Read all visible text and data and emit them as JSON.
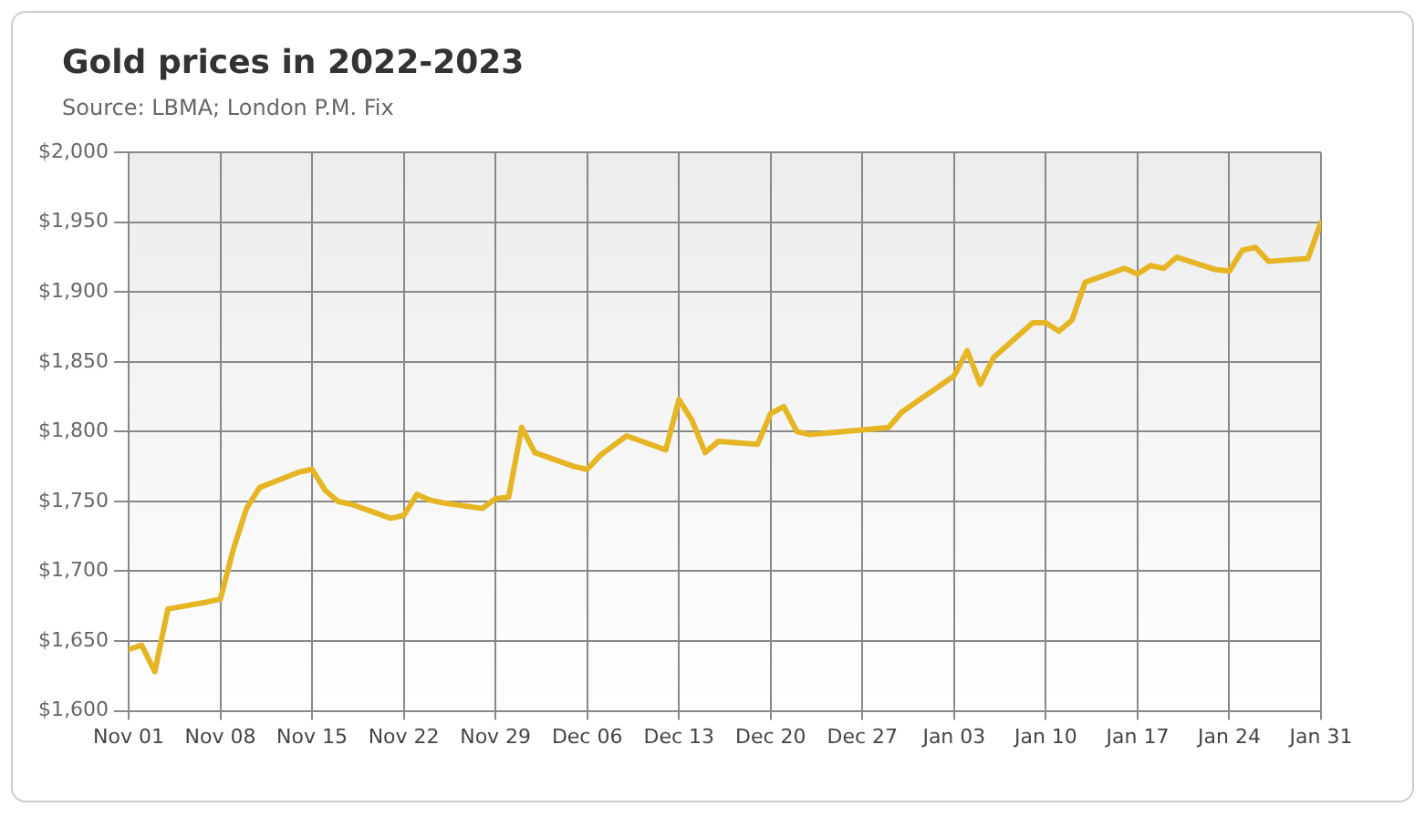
{
  "chart_data": {
    "type": "line",
    "title": "Gold prices in 2022-2023",
    "annotations": [
      "Source: LBMA; London P.M. Fix"
    ],
    "x": [
      "2022-11-01",
      "2022-11-02",
      "2022-11-03",
      "2022-11-04",
      "2022-11-07",
      "2022-11-08",
      "2022-11-09",
      "2022-11-10",
      "2022-11-11",
      "2022-11-14",
      "2022-11-15",
      "2022-11-16",
      "2022-11-17",
      "2022-11-18",
      "2022-11-21",
      "2022-11-22",
      "2022-11-23",
      "2022-11-24",
      "2022-11-25",
      "2022-11-28",
      "2022-11-29",
      "2022-11-30",
      "2022-12-01",
      "2022-12-02",
      "2022-12-05",
      "2022-12-06",
      "2022-12-07",
      "2022-12-08",
      "2022-12-09",
      "2022-12-12",
      "2022-12-13",
      "2022-12-14",
      "2022-12-15",
      "2022-12-16",
      "2022-12-19",
      "2022-12-20",
      "2022-12-21",
      "2022-12-22",
      "2022-12-23",
      "2022-12-28",
      "2022-12-29",
      "2022-12-30",
      "2023-01-03",
      "2023-01-04",
      "2023-01-05",
      "2023-01-06",
      "2023-01-09",
      "2023-01-10",
      "2023-01-11",
      "2023-01-12",
      "2023-01-13",
      "2023-01-16",
      "2023-01-17",
      "2023-01-18",
      "2023-01-19",
      "2023-01-20",
      "2023-01-23",
      "2023-01-24",
      "2023-01-25",
      "2023-01-26",
      "2023-01-27",
      "2023-01-30",
      "2023-01-31"
    ],
    "series": [
      {
        "color": "#e5b524",
        "values": [
          1644,
          1647,
          1628,
          1673,
          1678,
          1680,
          1716,
          1745,
          1760,
          1771,
          1773,
          1758,
          1750,
          1748,
          1738,
          1740,
          1755,
          1751,
          1749,
          1745,
          1752,
          1753,
          1803,
          1785,
          1775,
          1773,
          1783,
          1790,
          1797,
          1787,
          1823,
          1808,
          1785,
          1793,
          1791,
          1813,
          1818,
          1800,
          1798,
          1802,
          1803,
          1814,
          1840,
          1858,
          1834,
          1853,
          1878,
          1878,
          1872,
          1880,
          1907,
          1917,
          1913,
          1919,
          1917,
          1925,
          1916,
          1915,
          1930,
          1932,
          1922,
          1924,
          1950
        ]
      }
    ],
    "ylim": [
      1600,
      2000
    ],
    "yticks": [
      {
        "value": 1600,
        "label": "$1,600"
      },
      {
        "value": 1650,
        "label": "$1,650"
      },
      {
        "value": 1700,
        "label": "$1,700"
      },
      {
        "value": 1750,
        "label": "$1,750"
      },
      {
        "value": 1800,
        "label": "$1,800"
      },
      {
        "value": 1850,
        "label": "$1,850"
      },
      {
        "value": 1900,
        "label": "$1,900"
      },
      {
        "value": 1950,
        "label": "$1,950"
      },
      {
        "value": 2000,
        "label": "$2,000"
      }
    ],
    "xlim": [
      "2022-11-01",
      "2023-01-31"
    ],
    "xticks": [
      {
        "value": "2022-11-01",
        "label": "Nov 01"
      },
      {
        "value": "2022-11-08",
        "label": "Nov 08"
      },
      {
        "value": "2022-11-15",
        "label": "Nov 15"
      },
      {
        "value": "2022-11-22",
        "label": "Nov 22"
      },
      {
        "value": "2022-11-29",
        "label": "Nov 29"
      },
      {
        "value": "2022-12-06",
        "label": "Dec 06"
      },
      {
        "value": "2022-12-13",
        "label": "Dec 13"
      },
      {
        "value": "2022-12-20",
        "label": "Dec 20"
      },
      {
        "value": "2022-12-27",
        "label": "Dec 27"
      },
      {
        "value": "2023-01-03",
        "label": "Jan 03"
      },
      {
        "value": "2023-01-10",
        "label": "Jan 10"
      },
      {
        "value": "2023-01-17",
        "label": "Jan 17"
      },
      {
        "value": "2023-01-24",
        "label": "Jan 24"
      },
      {
        "value": "2023-01-31",
        "label": "Jan 31"
      }
    ],
    "grid": true,
    "legend": false,
    "marker": "none",
    "line_style": "solid"
  }
}
